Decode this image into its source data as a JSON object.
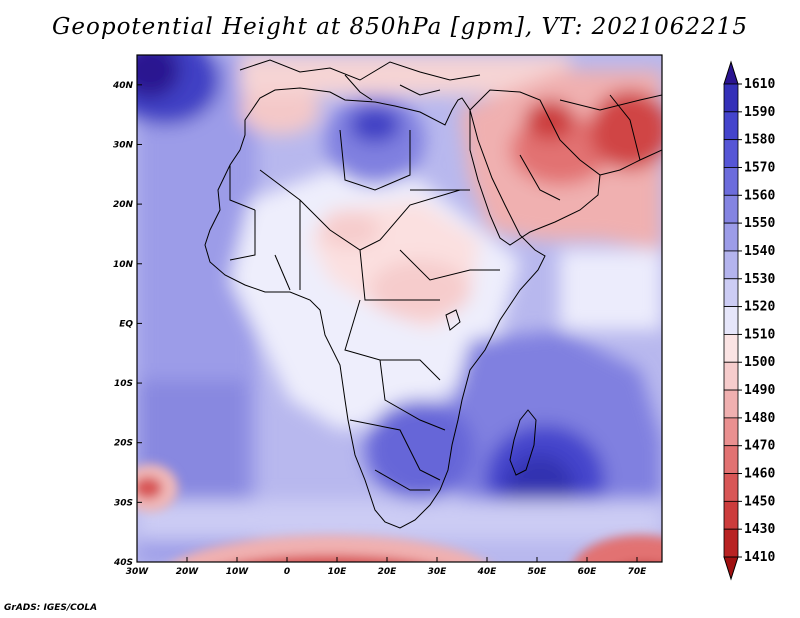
{
  "title": "Geopotential Height at 850hPa [gpm], VT: 2021062215",
  "footer": "GrADS: IGES/COLA",
  "map": {
    "lon_range": [
      -30,
      75
    ],
    "lat_range": [
      -40,
      45
    ],
    "x_ticks": [
      "30W",
      "20W",
      "10W",
      "0",
      "10E",
      "20E",
      "30E",
      "40E",
      "50E",
      "60E",
      "70E"
    ],
    "x_tick_values": [
      -30,
      -20,
      -10,
      0,
      10,
      20,
      30,
      40,
      50,
      60,
      70
    ],
    "y_ticks": [
      "40N",
      "30N",
      "20N",
      "10N",
      "EQ",
      "10S",
      "20S",
      "30S",
      "40S"
    ],
    "y_tick_values": [
      40,
      30,
      20,
      10,
      0,
      -10,
      -20,
      -30,
      -40
    ]
  },
  "colorbar": {
    "labels": [
      "1610",
      "1590",
      "1580",
      "1570",
      "1560",
      "1550",
      "1540",
      "1530",
      "1520",
      "1510",
      "1500",
      "1490",
      "1480",
      "1470",
      "1460",
      "1450",
      "1430",
      "1410"
    ],
    "colors": [
      "#2a1490",
      "#3430b8",
      "#4444cc",
      "#5656d6",
      "#6c6cdc",
      "#8484e2",
      "#9c9ce8",
      "#b4b4ee",
      "#ccccf4",
      "#e6e6fa",
      "#fbe4e4",
      "#f6cccc",
      "#f0b0b0",
      "#ea9090",
      "#e27272",
      "#d85656",
      "#cc3c3c",
      "#b82222",
      "#a01010"
    ]
  }
}
